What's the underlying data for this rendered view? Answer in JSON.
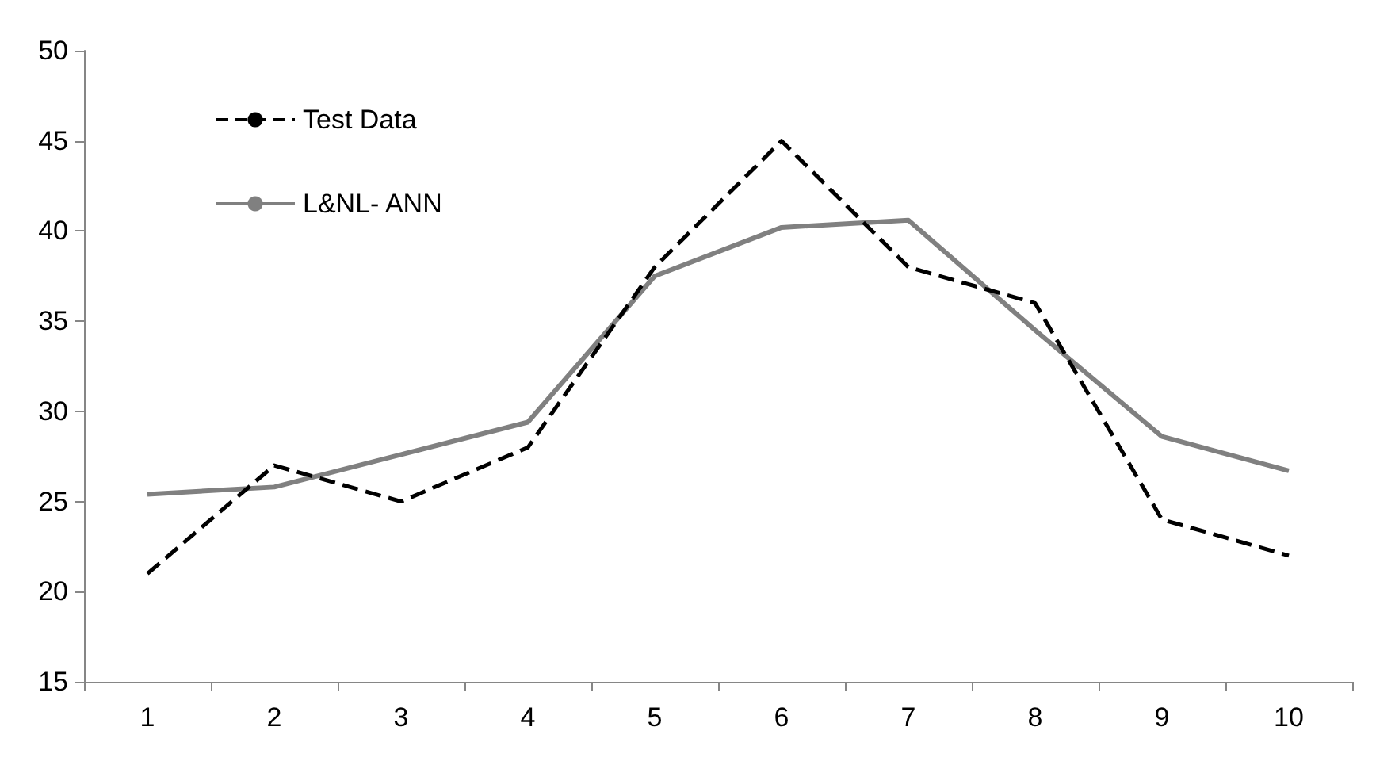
{
  "chart_data": {
    "type": "line",
    "categories": [
      "1",
      "2",
      "3",
      "4",
      "5",
      "6",
      "7",
      "8",
      "9",
      "10"
    ],
    "series": [
      {
        "name": "Test Data",
        "color": "#000000",
        "line_style": "dashed",
        "values": [
          21,
          27,
          25,
          28,
          38,
          45,
          38,
          36,
          24,
          22
        ]
      },
      {
        "name": "L&NL- ANN",
        "color": "#808080",
        "line_style": "solid",
        "values": [
          25.4,
          25.8,
          27.6,
          29.4,
          37.5,
          40.2,
          40.6,
          34.5,
          28.6,
          26.7
        ]
      }
    ],
    "ylim": [
      15,
      50
    ],
    "yticks": [
      15,
      20,
      25,
      30,
      35,
      40,
      45,
      50
    ],
    "grid": false,
    "legend": "top left",
    "marker": "none"
  }
}
